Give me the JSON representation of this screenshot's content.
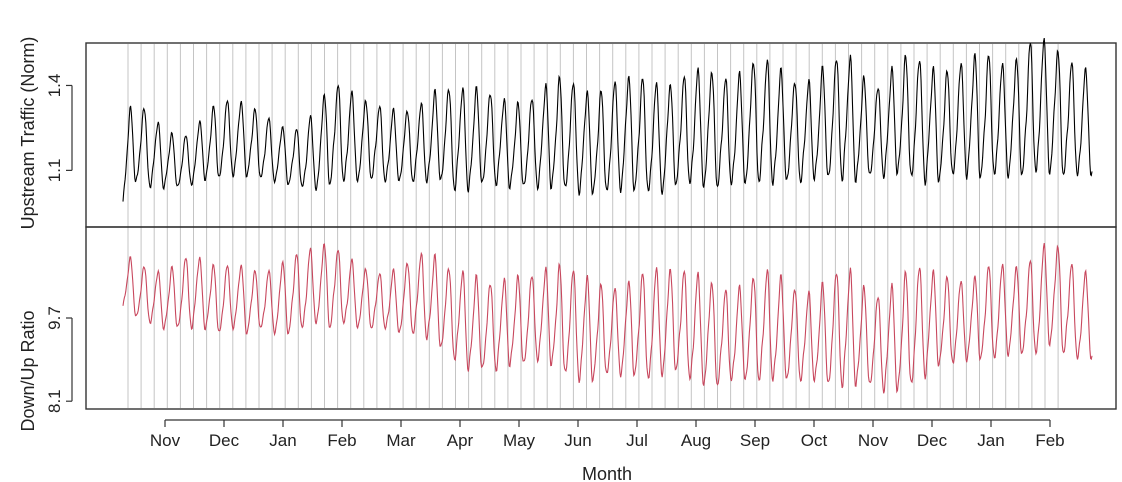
{
  "chart_data": {
    "type": "line",
    "xlabel": "Month",
    "x_ticks": [
      "Nov",
      "Dec",
      "Jan",
      "Feb",
      "Mar",
      "Apr",
      "May",
      "Jun",
      "Jul",
      "Aug",
      "Sep",
      "Oct",
      "Nov",
      "Dec",
      "Jan",
      "Feb"
    ],
    "weekly_gridlines": true,
    "weekly_gridline_count": 72,
    "panels": [
      {
        "name": "upstream",
        "ylabel": "Upstream Traffic (Norm)",
        "yticks": [
          "1.1",
          "1.4"
        ],
        "ytick_values": [
          1.1,
          1.4
        ],
        "ylim": [
          0.9,
          1.55
        ],
        "color": "#000000",
        "series": {
          "cycles": 70,
          "baseline": [
            1.12,
            1.2,
            1.16,
            1.14,
            1.12,
            1.14,
            1.18,
            1.2,
            1.21,
            1.2,
            1.18,
            1.16,
            1.14,
            1.14,
            1.17,
            1.22,
            1.22,
            1.2,
            1.2,
            1.18,
            1.18,
            1.18,
            1.2,
            1.22,
            1.2,
            1.2,
            1.21,
            1.2,
            1.18,
            1.18,
            1.2,
            1.22,
            1.22,
            1.2,
            1.18,
            1.2,
            1.22,
            1.22,
            1.21,
            1.2,
            1.22,
            1.24,
            1.24,
            1.23,
            1.22,
            1.25,
            1.27,
            1.25,
            1.24,
            1.22,
            1.24,
            1.27,
            1.28,
            1.26,
            1.22,
            1.24,
            1.28,
            1.28,
            1.26,
            1.24,
            1.26,
            1.28,
            1.28,
            1.28,
            1.26,
            1.29,
            1.32,
            1.31,
            1.28,
            1.26
          ],
          "amplitude": [
            0.14,
            0.14,
            0.12,
            0.1,
            0.08,
            0.09,
            0.11,
            0.13,
            0.13,
            0.12,
            0.11,
            0.1,
            0.09,
            0.1,
            0.14,
            0.17,
            0.16,
            0.14,
            0.13,
            0.12,
            0.12,
            0.12,
            0.14,
            0.16,
            0.17,
            0.17,
            0.16,
            0.15,
            0.14,
            0.14,
            0.16,
            0.18,
            0.19,
            0.18,
            0.16,
            0.18,
            0.19,
            0.19,
            0.19,
            0.18,
            0.17,
            0.19,
            0.2,
            0.19,
            0.17,
            0.2,
            0.21,
            0.2,
            0.18,
            0.16,
            0.17,
            0.2,
            0.21,
            0.2,
            0.14,
            0.16,
            0.19,
            0.21,
            0.2,
            0.18,
            0.18,
            0.2,
            0.21,
            0.2,
            0.18,
            0.21,
            0.23,
            0.22,
            0.2,
            0.18
          ]
        }
      },
      {
        "name": "ratio",
        "ylabel": "Down/Up Ratio",
        "yticks": [
          "8.1",
          "9.7"
        ],
        "ytick_values": [
          8.1,
          9.7
        ],
        "ylim": [
          7.95,
          11.45
        ],
        "color": "#c8485e",
        "series": {
          "cycles": 70,
          "baseline": [
            10.4,
            10.2,
            10.1,
            10.0,
            10.1,
            10.2,
            10.1,
            10.0,
            10.1,
            10.0,
            10.0,
            10.0,
            10.1,
            10.2,
            10.3,
            10.3,
            10.2,
            10.1,
            10.0,
            10.0,
            10.0,
            10.1,
            10.1,
            9.9,
            9.7,
            9.6,
            9.5,
            9.5,
            9.6,
            9.6,
            9.7,
            9.7,
            9.6,
            9.5,
            9.4,
            9.4,
            9.4,
            9.5,
            9.5,
            9.6,
            9.6,
            9.5,
            9.4,
            9.3,
            9.3,
            9.4,
            9.5,
            9.5,
            9.4,
            9.3,
            9.3,
            9.4,
            9.5,
            9.4,
            9.2,
            9.2,
            9.3,
            9.5,
            9.6,
            9.6,
            9.6,
            9.6,
            9.7,
            9.8,
            9.8,
            9.8,
            9.9,
            10.2,
            9.9,
            9.7
          ],
          "amplitude": [
            0.5,
            0.5,
            0.5,
            0.5,
            0.6,
            0.7,
            0.6,
            0.6,
            0.6,
            0.6,
            0.5,
            0.6,
            0.7,
            0.7,
            0.7,
            0.8,
            0.6,
            0.6,
            0.5,
            0.5,
            0.6,
            0.7,
            0.8,
            0.8,
            0.8,
            0.9,
            0.8,
            0.8,
            0.8,
            0.8,
            0.8,
            0.9,
            1.0,
            1.0,
            0.9,
            0.8,
            0.8,
            0.9,
            1.0,
            1.0,
            0.9,
            1.0,
            1.0,
            0.9,
            0.8,
            0.9,
            1.0,
            1.0,
            0.9,
            0.8,
            0.8,
            1.0,
            1.1,
            1.0,
            0.8,
            0.9,
            1.0,
            1.1,
            1.0,
            0.8,
            0.8,
            0.7,
            0.8,
            0.9,
            0.8,
            0.8,
            0.9,
            1.0,
            0.9,
            0.8
          ]
        }
      }
    ]
  }
}
